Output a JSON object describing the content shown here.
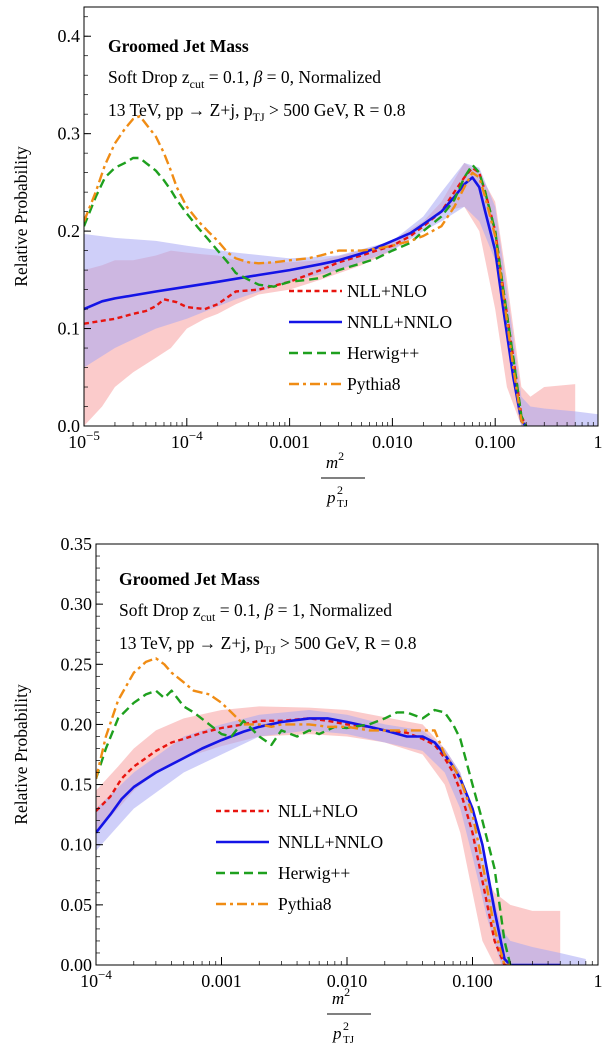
{
  "colors": {
    "nll": "#e8140f",
    "nnll": "#1414e6",
    "herwig": "#1ea01e",
    "pythia": "#f08c14",
    "nll_band": "#f8a0a0",
    "nnll_band": "#a8a8f4"
  },
  "chart_data": [
    {
      "type": "line",
      "title": "Groomed Jet Mass",
      "subtitle": "Soft Drop z_cut = 0.1, β = 0, Normalized",
      "subtitle_parts": [
        "Soft Drop z",
        "cut",
        " = 0.1, ",
        "β",
        " = 0, Normalized"
      ],
      "process_parts": [
        "13 TeV, pp → Z+j, p",
        "TJ",
        " > 500 GeV, R = 0.8"
      ],
      "xlabel": {
        "num": "m",
        "num_sup": "2",
        "den": "p",
        "den_sup": "2",
        "den_sub": "TJ"
      },
      "ylabel": "Relative Probability",
      "xscale": "log",
      "xlim": [
        1e-05,
        1
      ],
      "ylim": [
        0,
        0.43
      ],
      "xticks": [
        {
          "v": 1e-05,
          "base": "10",
          "exp": "−5"
        },
        {
          "v": 0.0001,
          "base": "10",
          "exp": "−4"
        },
        {
          "v": 0.001,
          "label": "0.001"
        },
        {
          "v": 0.01,
          "label": "0.010"
        },
        {
          "v": 0.1,
          "label": "0.100"
        },
        {
          "v": 1,
          "label": "1"
        }
      ],
      "yticks": [
        {
          "v": 0.0,
          "label": "0.0"
        },
        {
          "v": 0.1,
          "label": "0.1"
        },
        {
          "v": 0.2,
          "label": "0.2"
        },
        {
          "v": 0.3,
          "label": "0.3"
        },
        {
          "v": 0.4,
          "label": "0.4"
        }
      ],
      "legend": [
        "NLL+NLO",
        "NNLL+NNLO",
        "Herwig++",
        "Pythia8"
      ],
      "bands": [
        {
          "series": "NLL+NLO",
          "x": [
            1e-05,
            1.5e-05,
            2e-05,
            3e-05,
            5e-05,
            7e-05,
            0.0001,
            0.00015,
            0.0002,
            0.0003,
            0.0005,
            0.001,
            0.002,
            0.005,
            0.01,
            0.02,
            0.03,
            0.05,
            0.07,
            0.1,
            0.13,
            0.18,
            0.22,
            0.3,
            0.6
          ],
          "lo": [
            0.0,
            0.02,
            0.04,
            0.055,
            0.07,
            0.08,
            0.1,
            0.11,
            0.115,
            0.125,
            0.135,
            0.14,
            0.15,
            0.165,
            0.18,
            0.205,
            0.22,
            0.225,
            0.2,
            0.12,
            0.04,
            0.0,
            0.0,
            0.0,
            0.0
          ],
          "hi": [
            0.16,
            0.165,
            0.17,
            0.17,
            0.175,
            0.18,
            0.178,
            0.176,
            0.175,
            0.17,
            0.168,
            0.168,
            0.17,
            0.18,
            0.19,
            0.21,
            0.23,
            0.27,
            0.26,
            0.23,
            0.15,
            0.04,
            0.03,
            0.04,
            0.043
          ]
        },
        {
          "series": "NNLL+NNLO",
          "x": [
            1e-05,
            2e-05,
            5e-05,
            0.0001,
            0.0003,
            0.001,
            0.003,
            0.01,
            0.02,
            0.03,
            0.05,
            0.07,
            0.1,
            0.13,
            0.18,
            0.22,
            0.3,
            0.6,
            1
          ],
          "lo": [
            0.06,
            0.08,
            0.1,
            0.11,
            0.13,
            0.148,
            0.16,
            0.18,
            0.2,
            0.21,
            0.225,
            0.21,
            0.17,
            0.1,
            0.0,
            0.0,
            0.0,
            0.0,
            0.0
          ],
          "hi": [
            0.197,
            0.193,
            0.19,
            0.185,
            0.178,
            0.172,
            0.175,
            0.19,
            0.215,
            0.24,
            0.27,
            0.265,
            0.225,
            0.14,
            0.03,
            0.02,
            0.018,
            0.015,
            0.012
          ]
        }
      ],
      "series": [
        {
          "name": "NLL+NLO",
          "x": [
            1e-05,
            1.5e-05,
            2e-05,
            3e-05,
            4e-05,
            5e-05,
            6e-05,
            8e-05,
            0.0001,
            0.00015,
            0.0002,
            0.0003,
            0.0005,
            0.001,
            0.002,
            0.003,
            0.005,
            0.007,
            0.01,
            0.015,
            0.02,
            0.03,
            0.04,
            0.05,
            0.06,
            0.07,
            0.08,
            0.1,
            0.12,
            0.15,
            0.18,
            0.2
          ],
          "y": [
            0.105,
            0.108,
            0.11,
            0.115,
            0.118,
            0.123,
            0.13,
            0.127,
            0.122,
            0.12,
            0.125,
            0.138,
            0.14,
            0.148,
            0.16,
            0.168,
            0.175,
            0.18,
            0.185,
            0.195,
            0.205,
            0.22,
            0.24,
            0.255,
            0.265,
            0.26,
            0.24,
            0.2,
            0.14,
            0.07,
            0.01,
            0.0
          ]
        },
        {
          "name": "NNLL+NNLO",
          "x": [
            1e-05,
            1.5e-05,
            2e-05,
            3e-05,
            5e-05,
            0.0001,
            0.0002,
            0.0005,
            0.001,
            0.002,
            0.003,
            0.005,
            0.007,
            0.01,
            0.015,
            0.02,
            0.03,
            0.04,
            0.05,
            0.06,
            0.07,
            0.08,
            0.1,
            0.12,
            0.15,
            0.18,
            0.2
          ],
          "y": [
            0.12,
            0.128,
            0.131,
            0.134,
            0.138,
            0.143,
            0.148,
            0.155,
            0.16,
            0.166,
            0.17,
            0.177,
            0.183,
            0.19,
            0.198,
            0.207,
            0.22,
            0.235,
            0.248,
            0.255,
            0.245,
            0.22,
            0.18,
            0.12,
            0.05,
            0.005,
            0.0
          ]
        },
        {
          "name": "Herwig++",
          "x": [
            1e-05,
            1.3e-05,
            1.6e-05,
            2e-05,
            2.5e-05,
            3e-05,
            3.5e-05,
            4e-05,
            5e-05,
            6e-05,
            7e-05,
            8e-05,
            0.0001,
            0.00013,
            0.00016,
            0.0002,
            0.00025,
            0.0003,
            0.0004,
            0.0005,
            0.0007,
            0.001,
            0.0015,
            0.002,
            0.003,
            0.005,
            0.007,
            0.01,
            0.015,
            0.02,
            0.03,
            0.04,
            0.05,
            0.06,
            0.07,
            0.08,
            0.1,
            0.12,
            0.15,
            0.18,
            0.2
          ],
          "y": [
            0.205,
            0.235,
            0.255,
            0.265,
            0.27,
            0.275,
            0.275,
            0.27,
            0.262,
            0.252,
            0.242,
            0.232,
            0.218,
            0.203,
            0.192,
            0.18,
            0.168,
            0.157,
            0.15,
            0.145,
            0.143,
            0.148,
            0.15,
            0.152,
            0.16,
            0.167,
            0.172,
            0.18,
            0.188,
            0.2,
            0.215,
            0.232,
            0.255,
            0.268,
            0.26,
            0.24,
            0.2,
            0.14,
            0.07,
            0.01,
            0.0
          ]
        },
        {
          "name": "Pythia8",
          "x": [
            1e-05,
            1.3e-05,
            1.6e-05,
            2e-05,
            2.5e-05,
            3e-05,
            3.5e-05,
            4e-05,
            5e-05,
            6e-05,
            7e-05,
            8e-05,
            0.0001,
            0.00013,
            0.00016,
            0.0002,
            0.00025,
            0.0003,
            0.0004,
            0.0005,
            0.0007,
            0.001,
            0.0015,
            0.002,
            0.003,
            0.005,
            0.007,
            0.01,
            0.015,
            0.02,
            0.03,
            0.04,
            0.05,
            0.06,
            0.07,
            0.08,
            0.1,
            0.12,
            0.15,
            0.18,
            0.2
          ],
          "y": [
            0.21,
            0.24,
            0.268,
            0.29,
            0.305,
            0.315,
            0.318,
            0.31,
            0.297,
            0.28,
            0.262,
            0.245,
            0.225,
            0.21,
            0.2,
            0.19,
            0.178,
            0.172,
            0.168,
            0.167,
            0.168,
            0.17,
            0.172,
            0.175,
            0.18,
            0.18,
            0.182,
            0.185,
            0.19,
            0.195,
            0.205,
            0.225,
            0.245,
            0.26,
            0.255,
            0.235,
            0.195,
            0.135,
            0.06,
            0.005,
            0.0
          ]
        }
      ]
    },
    {
      "type": "line",
      "title": "Groomed Jet Mass",
      "subtitle": "Soft Drop z_cut = 0.1, β = 1, Normalized",
      "subtitle_parts": [
        "Soft Drop z",
        "cut",
        " = 0.1, ",
        "β",
        " = 1, Normalized"
      ],
      "process_parts": [
        "13 TeV, pp → Z+j, p",
        "TJ",
        " > 500 GeV, R = 0.8"
      ],
      "xlabel": {
        "num": "m",
        "num_sup": "2",
        "den": "p",
        "den_sup": "2",
        "den_sub": "TJ"
      },
      "ylabel": "Relative Probability",
      "xscale": "log",
      "xlim": [
        0.0001,
        1
      ],
      "ylim": [
        0,
        0.35
      ],
      "xticks": [
        {
          "v": 0.0001,
          "base": "10",
          "exp": "−4"
        },
        {
          "v": 0.001,
          "label": "0.001"
        },
        {
          "v": 0.01,
          "label": "0.010"
        },
        {
          "v": 0.1,
          "label": "0.100"
        },
        {
          "v": 1,
          "label": "1"
        }
      ],
      "yticks": [
        {
          "v": 0.0,
          "label": "0.00"
        },
        {
          "v": 0.05,
          "label": "0.05"
        },
        {
          "v": 0.1,
          "label": "0.10"
        },
        {
          "v": 0.15,
          "label": "0.15"
        },
        {
          "v": 0.2,
          "label": "0.20"
        },
        {
          "v": 0.25,
          "label": "0.25"
        },
        {
          "v": 0.3,
          "label": "0.30"
        },
        {
          "v": 0.35,
          "label": "0.35"
        }
      ],
      "legend": [
        "NLL+NLO",
        "NNLL+NNLO",
        "Herwig++",
        "Pythia8"
      ],
      "bands": [
        {
          "series": "NLL+NLO",
          "x": [
            0.0001,
            0.00015,
            0.0002,
            0.0003,
            0.0005,
            0.001,
            0.002,
            0.005,
            0.01,
            0.02,
            0.04,
            0.06,
            0.08,
            0.1,
            0.12,
            0.15,
            0.2,
            0.3,
            0.5
          ],
          "lo": [
            0.11,
            0.13,
            0.145,
            0.16,
            0.172,
            0.182,
            0.19,
            0.192,
            0.19,
            0.185,
            0.175,
            0.15,
            0.11,
            0.06,
            0.02,
            0.0,
            0.0,
            0.0,
            0.0
          ],
          "hi": [
            0.145,
            0.165,
            0.18,
            0.195,
            0.205,
            0.212,
            0.215,
            0.214,
            0.212,
            0.206,
            0.2,
            0.18,
            0.16,
            0.12,
            0.08,
            0.06,
            0.05,
            0.045,
            0.045
          ]
        },
        {
          "series": "NNLL+NNLO",
          "x": [
            0.0001,
            0.0002,
            0.0005,
            0.001,
            0.002,
            0.005,
            0.01,
            0.02,
            0.04,
            0.06,
            0.08,
            0.1,
            0.13,
            0.17,
            0.2,
            0.3,
            0.5,
            0.8
          ],
          "lo": [
            0.095,
            0.13,
            0.16,
            0.175,
            0.19,
            0.195,
            0.192,
            0.185,
            0.178,
            0.16,
            0.13,
            0.09,
            0.04,
            0.0,
            0.0,
            0.0,
            0.0,
            0.0
          ],
          "hi": [
            0.13,
            0.16,
            0.19,
            0.2,
            0.208,
            0.212,
            0.208,
            0.2,
            0.195,
            0.18,
            0.16,
            0.125,
            0.08,
            0.03,
            0.02,
            0.015,
            0.01,
            0.005
          ]
        }
      ],
      "series": [
        {
          "name": "NLL+NLO",
          "x": [
            0.0001,
            0.00013,
            0.00016,
            0.0002,
            0.00025,
            0.0003,
            0.0004,
            0.0005,
            0.0007,
            0.001,
            0.0015,
            0.002,
            0.003,
            0.005,
            0.007,
            0.01,
            0.015,
            0.02,
            0.03,
            0.04,
            0.05,
            0.06,
            0.07,
            0.08,
            0.1,
            0.12,
            0.15,
            0.18,
            0.2
          ],
          "y": [
            0.128,
            0.14,
            0.155,
            0.165,
            0.172,
            0.178,
            0.185,
            0.188,
            0.193,
            0.197,
            0.2,
            0.203,
            0.203,
            0.205,
            0.203,
            0.2,
            0.198,
            0.195,
            0.193,
            0.188,
            0.183,
            0.172,
            0.16,
            0.145,
            0.11,
            0.07,
            0.02,
            0.0,
            0.0
          ]
        },
        {
          "name": "NNLL+NNLO",
          "x": [
            0.0001,
            0.00013,
            0.00016,
            0.0002,
            0.0003,
            0.0005,
            0.0007,
            0.001,
            0.0015,
            0.002,
            0.003,
            0.005,
            0.007,
            0.01,
            0.015,
            0.02,
            0.03,
            0.04,
            0.05,
            0.06,
            0.07,
            0.08,
            0.1,
            0.12,
            0.15,
            0.18,
            0.2,
            0.3,
            0.5
          ],
          "y": [
            0.11,
            0.125,
            0.138,
            0.148,
            0.16,
            0.172,
            0.18,
            0.187,
            0.194,
            0.198,
            0.202,
            0.205,
            0.205,
            0.202,
            0.198,
            0.195,
            0.19,
            0.19,
            0.185,
            0.175,
            0.165,
            0.155,
            0.13,
            0.1,
            0.045,
            0.005,
            0.0,
            0.0,
            0.0
          ]
        },
        {
          "name": "Herwig++",
          "x": [
            0.0001,
            0.00012,
            0.00015,
            0.0002,
            0.00025,
            0.0003,
            0.00035,
            0.0004,
            0.0005,
            0.0006,
            0.0008,
            0.001,
            0.0012,
            0.0015,
            0.002,
            0.0025,
            0.003,
            0.004,
            0.005,
            0.006,
            0.008,
            0.01,
            0.015,
            0.02,
            0.025,
            0.03,
            0.04,
            0.05,
            0.06,
            0.07,
            0.08,
            0.1,
            0.12,
            0.15,
            0.18,
            0.2
          ],
          "y": [
            0.155,
            0.18,
            0.205,
            0.218,
            0.225,
            0.228,
            0.222,
            0.228,
            0.215,
            0.21,
            0.2,
            0.192,
            0.19,
            0.203,
            0.19,
            0.183,
            0.195,
            0.19,
            0.195,
            0.192,
            0.198,
            0.197,
            0.2,
            0.205,
            0.21,
            0.21,
            0.205,
            0.212,
            0.21,
            0.2,
            0.188,
            0.15,
            0.12,
            0.08,
            0.02,
            0.0
          ]
        },
        {
          "name": "Pythia8",
          "x": [
            0.0001,
            0.00012,
            0.00015,
            0.0002,
            0.00025,
            0.0003,
            0.00035,
            0.0004,
            0.0005,
            0.0006,
            0.0008,
            0.001,
            0.0012,
            0.0015,
            0.002,
            0.0025,
            0.003,
            0.004,
            0.005,
            0.007,
            0.01,
            0.015,
            0.02,
            0.03,
            0.04,
            0.05,
            0.06,
            0.07,
            0.08,
            0.1,
            0.12,
            0.15,
            0.18,
            0.2
          ],
          "y": [
            0.155,
            0.19,
            0.22,
            0.243,
            0.252,
            0.255,
            0.25,
            0.243,
            0.235,
            0.228,
            0.225,
            0.218,
            0.21,
            0.2,
            0.2,
            0.198,
            0.2,
            0.2,
            0.2,
            0.198,
            0.198,
            0.195,
            0.195,
            0.195,
            0.195,
            0.195,
            0.175,
            0.165,
            0.155,
            0.125,
            0.085,
            0.03,
            0.0,
            0.0
          ]
        }
      ]
    }
  ]
}
